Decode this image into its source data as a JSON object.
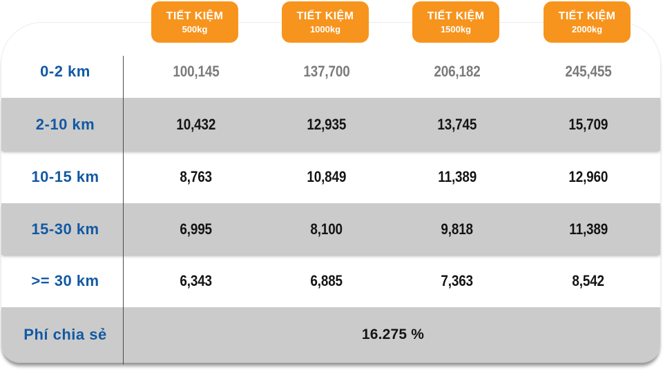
{
  "table": {
    "columns": [
      {
        "title": "TIẾT KIỆM",
        "subtitle": "500kg"
      },
      {
        "title": "TIẾT KIỆM",
        "subtitle": "1000kg"
      },
      {
        "title": "TIẾT KIỆM",
        "subtitle": "1500kg"
      },
      {
        "title": "TIẾT KIỆM",
        "subtitle": "2000kg"
      }
    ],
    "rows": [
      {
        "label": "0-2 km",
        "values": [
          "100,145",
          "137,700",
          "206,182",
          "245,455"
        ]
      },
      {
        "label": "2-10 km",
        "values": [
          "10,432",
          "12,935",
          "13,745",
          "15,709"
        ]
      },
      {
        "label": "10-15 km",
        "values": [
          "8,763",
          "10,849",
          "11,389",
          "12,960"
        ]
      },
      {
        "label": "15-30 km",
        "values": [
          "6,995",
          "8,100",
          "9,818",
          "11,389"
        ]
      },
      {
        "label": ">= 30 km",
        "values": [
          "6,343",
          "6,885",
          "7,363",
          "8,542"
        ]
      }
    ],
    "footer": {
      "label": "Phí chia sẻ",
      "value": "16.275 %"
    }
  },
  "chart_data": {
    "type": "table",
    "columns": [
      "TIẾT KIỆM 500kg",
      "TIẾT KIỆM 1000kg",
      "TIẾT KIỆM 1500kg",
      "TIẾT KIỆM 2000kg"
    ],
    "row_labels": [
      "0-2 km",
      "2-10 km",
      "10-15 km",
      "15-30 km",
      ">= 30 km",
      "Phí chia sẻ"
    ],
    "values": [
      [
        100145,
        137700,
        206182,
        245455
      ],
      [
        10432,
        12935,
        13745,
        15709
      ],
      [
        8763,
        10849,
        11389,
        12960
      ],
      [
        6995,
        8100,
        9818,
        11389
      ],
      [
        6343,
        6885,
        7363,
        8542
      ]
    ],
    "footer_value": "16.275 %"
  },
  "colors": {
    "accent_orange": "#F7941D",
    "label_blue": "#1159A3",
    "stripe_gray": "#CBCBCB",
    "muted_value": "#7B7B7B",
    "value_black": "#141414",
    "divider_gray": "#4A4A4A"
  }
}
